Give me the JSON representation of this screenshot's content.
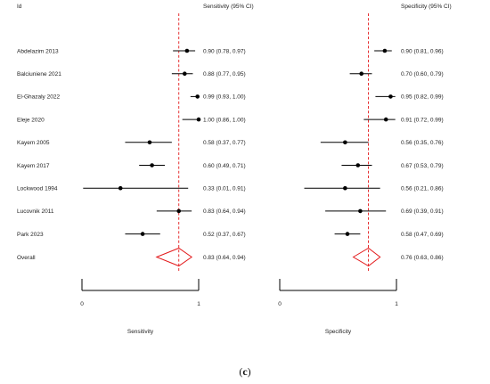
{
  "header": {
    "id_label": "Id"
  },
  "colors": {
    "point": "#000000",
    "ci_line": "#000000",
    "null_line": "#e31a1c",
    "overall_diamond": "#e31a1c",
    "axis": "#000000"
  },
  "panel_label_open": "(",
  "panel_label_letter": "c",
  "panel_label_close": ")",
  "chart_data": [
    {
      "type": "forest",
      "header": "Sensitivity (95% CI)",
      "xlabel": "Sensitivity",
      "xlim": [
        0,
        1
      ],
      "xticks": [
        "0",
        "1"
      ],
      "reference_line": 0.83,
      "studies": [
        {
          "id": "Abdelazim 2013",
          "est": 0.9,
          "lo": 0.78,
          "hi": 0.97,
          "text": "0.90 (0.78, 0.97)"
        },
        {
          "id": "Balciuniene 2021",
          "est": 0.88,
          "lo": 0.77,
          "hi": 0.95,
          "text": "0.88 (0.77, 0.95)"
        },
        {
          "id": "El-Ghazaly 2022",
          "est": 0.99,
          "lo": 0.93,
          "hi": 1.0,
          "text": "0.99 (0.93, 1.00)"
        },
        {
          "id": "Eleje 2020",
          "est": 1.0,
          "lo": 0.86,
          "hi": 1.0,
          "text": "1.00 (0.86, 1.00)"
        },
        {
          "id": "Kayem 2005",
          "est": 0.58,
          "lo": 0.37,
          "hi": 0.77,
          "text": "0.58 (0.37, 0.77)"
        },
        {
          "id": "Kayem 2017",
          "est": 0.6,
          "lo": 0.49,
          "hi": 0.71,
          "text": "0.60 (0.49, 0.71)"
        },
        {
          "id": "Lockwood 1994",
          "est": 0.33,
          "lo": 0.01,
          "hi": 0.91,
          "text": "0.33 (0.01, 0.91)"
        },
        {
          "id": "Lucovnik 2011",
          "est": 0.83,
          "lo": 0.64,
          "hi": 0.94,
          "text": "0.83 (0.64, 0.94)"
        },
        {
          "id": "Park 2023",
          "est": 0.52,
          "lo": 0.37,
          "hi": 0.67,
          "text": "0.52 (0.37, 0.67)"
        }
      ],
      "overall": {
        "id": "Overall",
        "est": 0.83,
        "lo": 0.64,
        "hi": 0.94,
        "text": "0.83 (0.64, 0.94)"
      }
    },
    {
      "type": "forest",
      "header": "Specificity (95% CI)",
      "xlabel": "Specificity",
      "xlim": [
        0,
        1
      ],
      "xticks": [
        "0",
        "1"
      ],
      "reference_line": 0.76,
      "studies": [
        {
          "id": "Abdelazim 2013",
          "est": 0.9,
          "lo": 0.81,
          "hi": 0.96,
          "text": "0.90 (0.81, 0.96)"
        },
        {
          "id": "Balciuniene 2021",
          "est": 0.7,
          "lo": 0.6,
          "hi": 0.79,
          "text": "0.70 (0.60, 0.79)"
        },
        {
          "id": "El-Ghazaly 2022",
          "est": 0.95,
          "lo": 0.82,
          "hi": 0.99,
          "text": "0.95 (0.82, 0.99)"
        },
        {
          "id": "Eleje 2020",
          "est": 0.91,
          "lo": 0.72,
          "hi": 0.99,
          "text": "0.91 (0.72, 0.99)"
        },
        {
          "id": "Kayem 2005",
          "est": 0.56,
          "lo": 0.35,
          "hi": 0.76,
          "text": "0.56 (0.35, 0.76)"
        },
        {
          "id": "Kayem 2017",
          "est": 0.67,
          "lo": 0.53,
          "hi": 0.79,
          "text": "0.67 (0.53, 0.79)"
        },
        {
          "id": "Lockwood 1994",
          "est": 0.56,
          "lo": 0.21,
          "hi": 0.86,
          "text": "0.56 (0.21, 0.86)"
        },
        {
          "id": "Lucovnik 2011",
          "est": 0.69,
          "lo": 0.39,
          "hi": 0.91,
          "text": "0.69 (0.39, 0.91)"
        },
        {
          "id": "Park 2023",
          "est": 0.58,
          "lo": 0.47,
          "hi": 0.69,
          "text": "0.58 (0.47, 0.69)"
        }
      ],
      "overall": {
        "id": "Overall",
        "est": 0.76,
        "lo": 0.63,
        "hi": 0.86,
        "text": "0.76 (0.63, 0.86)"
      }
    }
  ]
}
